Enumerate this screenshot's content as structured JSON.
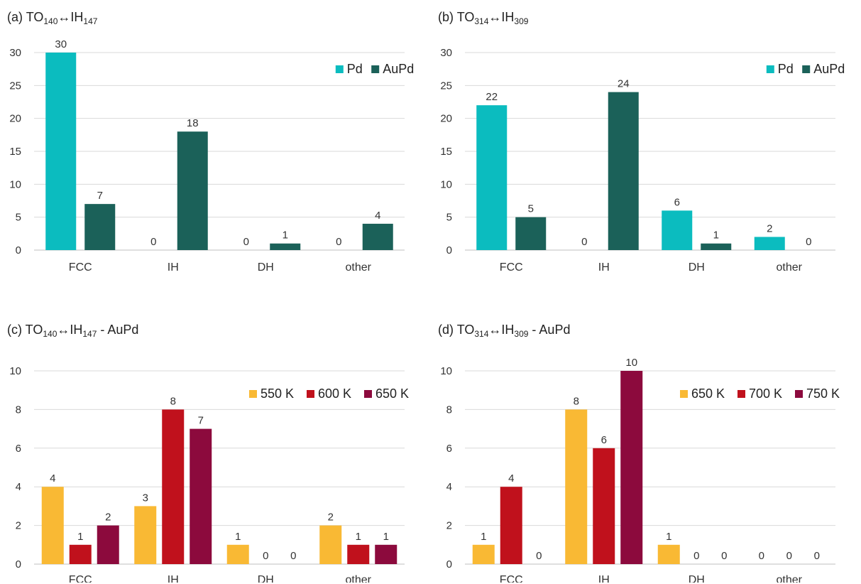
{
  "colors": {
    "pd": "#0bbcbf",
    "aupd": "#1b6159",
    "yellow": "#f9b934",
    "red": "#c0111c",
    "maroon": "#8c0a3d",
    "grid": "#d9d9d9",
    "axis": "#bfbfbf"
  },
  "chart_data": [
    {
      "type": "bar",
      "title": {
        "prefix": "(a)",
        "t1": "TO",
        "s1": "140",
        "arrow": "↔",
        "t2": "IH",
        "s2": "147",
        "suffix": ""
      },
      "categories": [
        "FCC",
        "IH",
        "DH",
        "other"
      ],
      "series": [
        {
          "name": "Pd",
          "color": "#0bbcbf",
          "values": [
            30,
            0,
            0,
            0
          ]
        },
        {
          "name": "AuPd",
          "color": "#1b6159",
          "values": [
            7,
            18,
            1,
            4
          ]
        }
      ],
      "ylim": [
        0,
        30
      ],
      "yticks": [
        0,
        5,
        10,
        15,
        20,
        25,
        30
      ],
      "grid": true,
      "legend": "top-right"
    },
    {
      "type": "bar",
      "title": {
        "prefix": "(b)",
        "t1": "TO",
        "s1": "314",
        "arrow": "↔",
        "t2": "IH",
        "s2": "309",
        "suffix": ""
      },
      "categories": [
        "FCC",
        "IH",
        "DH",
        "other"
      ],
      "series": [
        {
          "name": "Pd",
          "color": "#0bbcbf",
          "values": [
            22,
            0,
            6,
            2
          ]
        },
        {
          "name": "AuPd",
          "color": "#1b6159",
          "values": [
            5,
            24,
            1,
            0
          ]
        }
      ],
      "ylim": [
        0,
        30
      ],
      "yticks": [
        0,
        5,
        10,
        15,
        20,
        25,
        30
      ],
      "grid": true,
      "legend": "top-right"
    },
    {
      "type": "bar",
      "title": {
        "prefix": "(c)",
        "t1": "TO",
        "s1": "140",
        "arrow": "↔",
        "t2": "IH",
        "s2": "147",
        "suffix": " -  AuPd"
      },
      "categories": [
        "FCC",
        "IH",
        "DH",
        "other"
      ],
      "series": [
        {
          "name": "550 K",
          "color": "#f9b934",
          "values": [
            4,
            3,
            1,
            2
          ]
        },
        {
          "name": "600 K",
          "color": "#c0111c",
          "values": [
            1,
            8,
            0,
            1
          ]
        },
        {
          "name": "650 K",
          "color": "#8c0a3d",
          "values": [
            2,
            7,
            0,
            1
          ]
        }
      ],
      "ylim": [
        0,
        10
      ],
      "yticks": [
        0,
        2,
        4,
        6,
        8,
        10
      ],
      "grid": true,
      "legend": "top-right"
    },
    {
      "type": "bar",
      "title": {
        "prefix": "(d)",
        "t1": "TO",
        "s1": "314",
        "arrow": "↔",
        "t2": "IH",
        "s2": "309",
        "suffix": " -  AuPd"
      },
      "categories": [
        "FCC",
        "IH",
        "DH",
        "other"
      ],
      "series": [
        {
          "name": "650 K",
          "color": "#f9b934",
          "values": [
            1,
            8,
            1,
            0
          ]
        },
        {
          "name": "700 K",
          "color": "#c0111c",
          "values": [
            4,
            6,
            0,
            0
          ]
        },
        {
          "name": "750 K",
          "color": "#8c0a3d",
          "values": [
            0,
            10,
            0,
            0
          ]
        }
      ],
      "ylim": [
        0,
        10
      ],
      "yticks": [
        0,
        2,
        4,
        6,
        8,
        10
      ],
      "grid": true,
      "legend": "top-right"
    }
  ]
}
